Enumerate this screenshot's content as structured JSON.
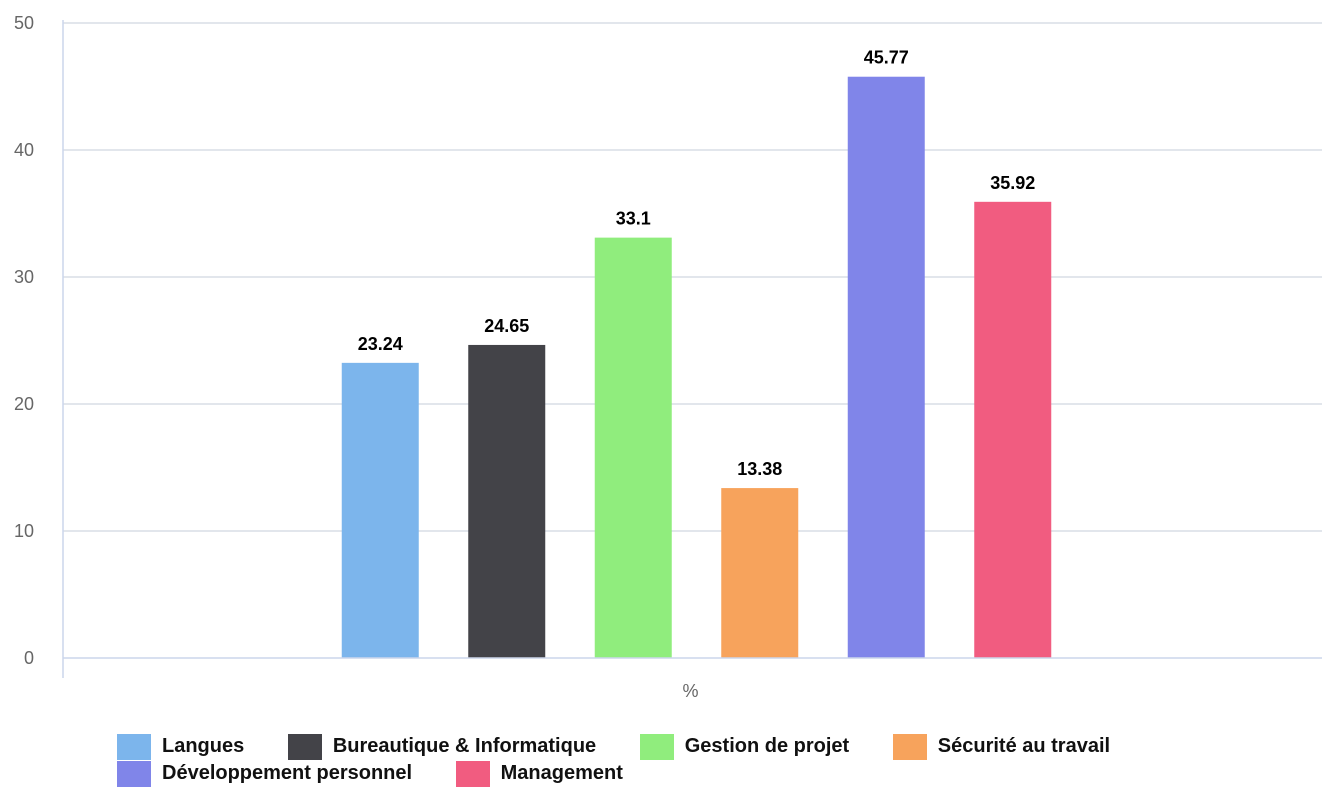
{
  "chart_data": {
    "type": "bar",
    "categories": [
      "%"
    ],
    "series": [
      {
        "name": "Langues",
        "values": [
          23.24
        ],
        "color": "#7cb5ec"
      },
      {
        "name": "Bureautique & Informatique",
        "values": [
          24.65
        ],
        "color": "#434348"
      },
      {
        "name": "Gestion de projet",
        "values": [
          33.1
        ],
        "color": "#90ed7d"
      },
      {
        "name": "Sécurité au travail",
        "values": [
          13.38
        ],
        "color": "#f7a35c"
      },
      {
        "name": "Développement personnel",
        "values": [
          45.77
        ],
        "color": "#8085e9"
      },
      {
        "name": "Management",
        "values": [
          35.92
        ],
        "color": "#f15c80"
      }
    ],
    "value_labels": [
      "23.24",
      "24.65",
      "33.1",
      "13.38",
      "45.77",
      "35.92"
    ],
    "ylim": [
      0,
      50
    ],
    "yticks": [
      0,
      10,
      20,
      30,
      40,
      50
    ],
    "grid": true,
    "legend": "bottom"
  }
}
